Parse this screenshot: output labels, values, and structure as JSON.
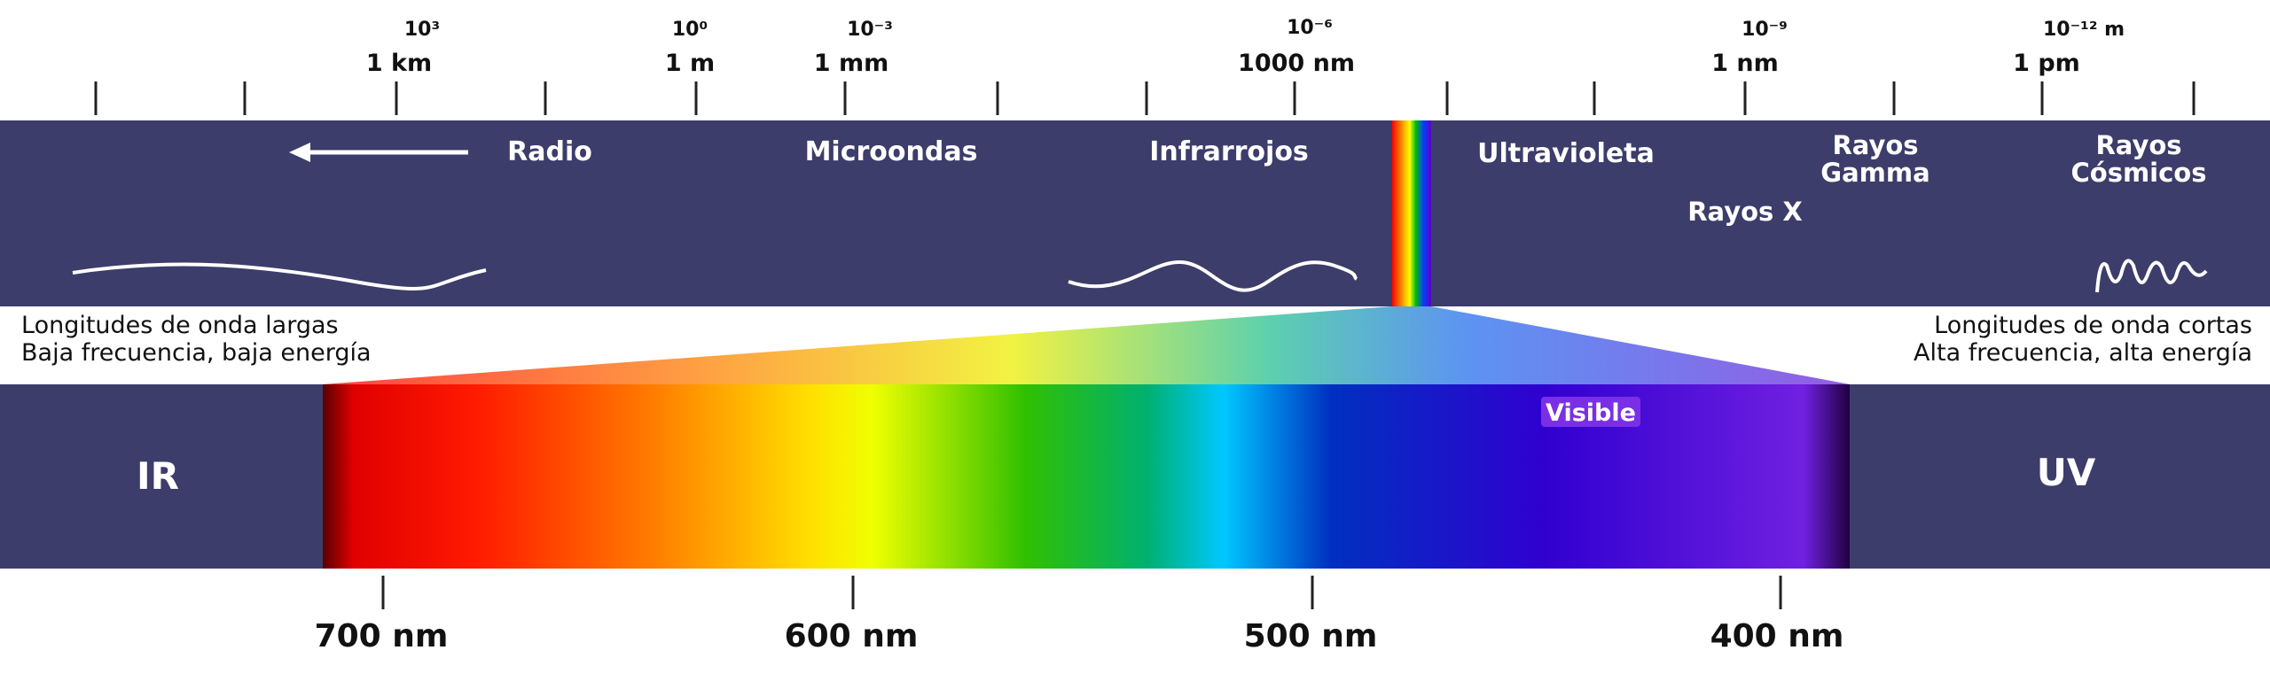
{
  "colors": {
    "band": "#3d3d6b",
    "band_text": "#ffffff",
    "ink": "#111111",
    "visible_label_bg": "#7a2fe6"
  },
  "scale": {
    "labels": [
      {
        "exp": "10³",
        "unit": "1 km"
      },
      {
        "exp": "10⁰",
        "unit": "1 m"
      },
      {
        "exp": "10⁻³",
        "unit": "1 mm"
      },
      {
        "exp": "10⁻⁶",
        "unit": "1000 nm"
      },
      {
        "exp": "10⁻⁹",
        "unit": "1 nm"
      },
      {
        "exp": "10⁻¹² m",
        "unit": "1 pm"
      }
    ]
  },
  "bands": {
    "radio": "Radio",
    "microwaves": "Microondas",
    "infrared": "Infrarrojos",
    "ultraviolet": "Ultravioleta",
    "gamma_line1": "Rayos",
    "gamma_line2": "Gamma",
    "cosmic_line1": "Rayos",
    "cosmic_line2": "Cósmicos",
    "xray": "Rayos X"
  },
  "captions": {
    "long_line1": "Longitudes de onda largas",
    "long_line2": "Baja frecuencia, baja energía",
    "short_line1": "Longitudes de onda cortas",
    "short_line2": "Alta frecuencia, alta energía"
  },
  "spectrum": {
    "ir": "IR",
    "uv": "UV",
    "visible": "Visible",
    "ticks": [
      "700 nm",
      "600 nm",
      "500 nm",
      "400 nm"
    ]
  },
  "icons": [
    "arrow-left-icon",
    "long-wave-icon",
    "medium-wave-icon",
    "short-wave-icon"
  ]
}
